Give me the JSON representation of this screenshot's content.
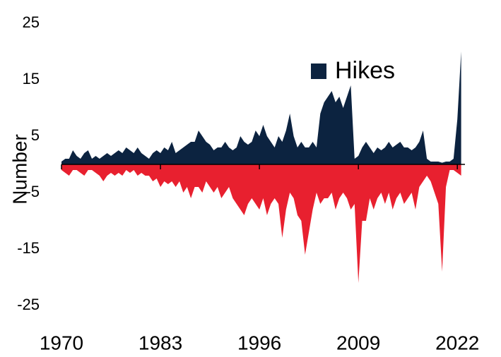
{
  "chart_data": {
    "type": "area",
    "y_label": "Number",
    "x": [
      1970,
      1970.5,
      1971,
      1971.5,
      1972,
      1972.5,
      1973,
      1973.5,
      1974,
      1974.5,
      1975,
      1975.5,
      1976,
      1976.5,
      1977,
      1977.5,
      1978,
      1978.5,
      1979,
      1979.5,
      1980,
      1980.5,
      1981,
      1981.5,
      1982,
      1982.5,
      1983,
      1983.5,
      1984,
      1984.5,
      1985,
      1985.5,
      1986,
      1986.5,
      1987,
      1987.5,
      1988,
      1988.5,
      1989,
      1989.5,
      1990,
      1990.5,
      1991,
      1991.5,
      1992,
      1992.5,
      1993,
      1993.5,
      1994,
      1994.5,
      1995,
      1995.5,
      1996,
      1996.5,
      1997,
      1997.5,
      1998,
      1998.5,
      1999,
      1999.5,
      2000,
      2000.5,
      2001,
      2001.5,
      2002,
      2002.5,
      2003,
      2003.5,
      2004,
      2004.5,
      2005,
      2005.5,
      2006,
      2006.5,
      2007,
      2007.5,
      2008,
      2008.5,
      2009,
      2009.5,
      2010,
      2010.5,
      2011,
      2011.5,
      2012,
      2012.5,
      2013,
      2013.5,
      2014,
      2014.5,
      2015,
      2015.5,
      2016,
      2016.5,
      2017,
      2017.5,
      2018,
      2018.5,
      2019,
      2019.5,
      2020,
      2020.5,
      2021,
      2021.5,
      2022,
      2022.5
    ],
    "series": [
      {
        "name": "Hikes",
        "color": "#0c2340",
        "values": [
          0.5,
          1,
          1,
          2.5,
          1.5,
          1,
          2,
          2.5,
          1,
          1.5,
          1,
          1.5,
          2,
          1.5,
          2,
          2.5,
          2,
          3,
          2.5,
          2,
          3,
          2,
          1.5,
          1,
          2,
          2.5,
          2,
          3,
          2.5,
          4,
          2,
          2.5,
          3,
          3.5,
          4,
          4,
          6,
          5,
          4,
          3.5,
          2.5,
          3,
          3,
          4,
          3,
          2.5,
          3,
          5,
          4,
          3.5,
          4,
          6,
          5,
          7,
          5,
          4,
          3,
          5,
          4,
          6,
          9,
          5,
          3,
          4,
          3,
          3,
          4,
          3,
          9,
          11,
          12,
          13,
          11,
          12,
          10,
          12,
          14,
          1,
          1.5,
          3,
          4,
          3,
          2,
          3,
          2.5,
          3,
          4,
          3,
          3.5,
          4,
          3,
          3,
          2.5,
          3,
          4,
          6,
          1,
          0.5,
          0.5,
          0.5,
          0.3,
          0.5,
          0.5,
          1,
          8,
          20
        ]
      },
      {
        "color": "#e8202f",
        "values": [
          -1,
          -1.5,
          -2,
          -1,
          -1,
          -1.5,
          -2,
          -1,
          -1,
          -1.5,
          -2,
          -3,
          -2,
          -1.5,
          -2,
          -1.5,
          -2,
          -1,
          -1.5,
          -1,
          -2,
          -1.5,
          -2,
          -2,
          -3,
          -2.5,
          -4,
          -3,
          -3.5,
          -3,
          -4,
          -3,
          -5,
          -4,
          -6,
          -4,
          -4,
          -5,
          -3,
          -4,
          -5,
          -4,
          -6,
          -5,
          -4,
          -6,
          -7,
          -8,
          -9,
          -7,
          -6,
          -7,
          -8,
          -6,
          -9,
          -7,
          -6,
          -7,
          -13,
          -8,
          -5,
          -6,
          -9,
          -10,
          -16,
          -12,
          -8,
          -5,
          -7,
          -6,
          -6,
          -5,
          -8,
          -6,
          -5,
          -6,
          -8,
          -7,
          -21,
          -10,
          -10,
          -6,
          -8,
          -6,
          -5,
          -7,
          -5,
          -8,
          -6,
          -5,
          -7,
          -6,
          -5,
          -8,
          -4,
          -3,
          -2,
          -3,
          -5,
          -7,
          -19,
          -4,
          -1,
          -1,
          -1.5,
          -2
        ]
      }
    ],
    "xlim": [
      1970,
      2023
    ],
    "xticks": [
      1970,
      1983,
      1996,
      2009,
      2022
    ],
    "ylim": [
      -25,
      25
    ],
    "yticks": [
      25,
      15,
      5,
      -5,
      -15,
      -25
    ]
  }
}
